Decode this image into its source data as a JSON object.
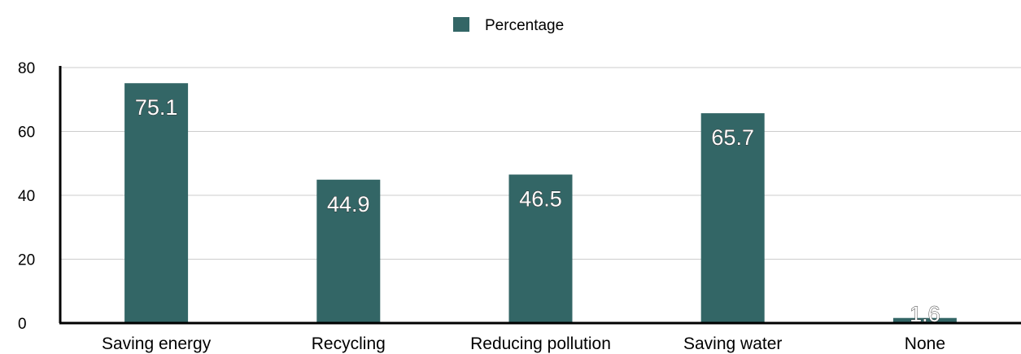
{
  "chart_data": {
    "type": "bar",
    "categories": [
      "Saving energy",
      "Recycling",
      "Reducing pollution",
      "Saving water",
      "None"
    ],
    "series": [
      {
        "name": "Percentage",
        "values": [
          75.1,
          44.9,
          46.5,
          65.7,
          1.6
        ]
      }
    ],
    "ylim": [
      0,
      80
    ],
    "yticks": [
      0,
      20,
      40,
      60,
      80
    ],
    "legend_position": "top-center",
    "grid": true,
    "colors": {
      "bar": "#336666",
      "grid": "#cccccc",
      "axis": "#000000"
    }
  }
}
